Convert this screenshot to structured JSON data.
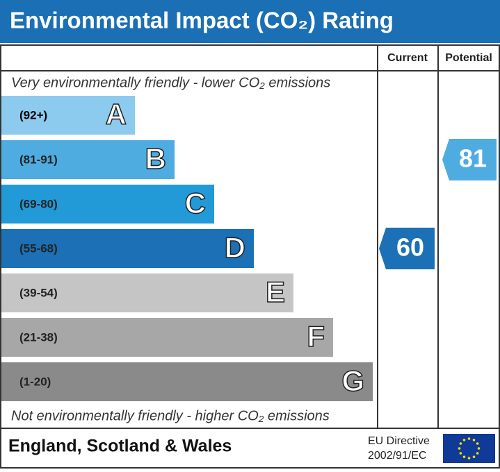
{
  "header": {
    "title": "Environmental Impact (CO₂) Rating",
    "current_label": "Current",
    "potential_label": "Potential"
  },
  "top_note": "Very environmentally friendly - lower CO₂ emissions",
  "bottom_note": "Not environmentally friendly - higher CO₂ emissions",
  "bands": [
    {
      "range": "(92+)",
      "letter": "A",
      "color": "#8dcbee"
    },
    {
      "range": "(81-91)",
      "letter": "B",
      "color": "#4eace1"
    },
    {
      "range": "(69-80)",
      "letter": "C",
      "color": "#229ad7"
    },
    {
      "range": "(55-68)",
      "letter": "D",
      "color": "#1b70b6"
    },
    {
      "range": "(39-54)",
      "letter": "E",
      "color": "#c5c5c5"
    },
    {
      "range": "(21-38)",
      "letter": "F",
      "color": "#a7a7a7"
    },
    {
      "range": "(1-20)",
      "letter": "G",
      "color": "#8a8a8a"
    }
  ],
  "current": {
    "value": 60
  },
  "potential": {
    "value": 81
  },
  "footer": {
    "region": "England, Scotland & Wales",
    "directive_line1": "EU Directive",
    "directive_line2": "2002/91/EC"
  }
}
